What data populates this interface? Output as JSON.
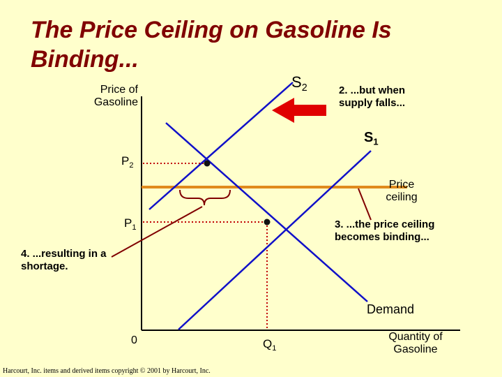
{
  "title": "The Price Ceiling on Gasoline Is Binding...",
  "axes": {
    "y_label": "Price of Gasoline",
    "x_label": "Quantity of Gasoline",
    "origin": "0"
  },
  "labels": {
    "p2": "P",
    "p2_sub": "2",
    "p1": "P",
    "p1_sub": "1",
    "q1": "Q",
    "q1_sub": "1",
    "s2": "S",
    "s2_sub": "2",
    "s1": "S",
    "s1_sub": "1",
    "demand": "Demand",
    "price_ceiling": "Price ceiling"
  },
  "annotations": {
    "supply_falls": "2. ...but when supply falls...",
    "ceiling_binding": "3. ...the price ceiling becomes binding...",
    "shortage": "4. ...resulting in a shortage."
  },
  "colors": {
    "curves": "#1010C8",
    "ceiling": "#E08A1E",
    "guides": "#C00000",
    "arrow": "#E00000",
    "pointer": "#800000",
    "title": "#800000"
  },
  "footer": "Harcourt, Inc. items and derived items copyright © 2001 by Harcourt, Inc."
}
